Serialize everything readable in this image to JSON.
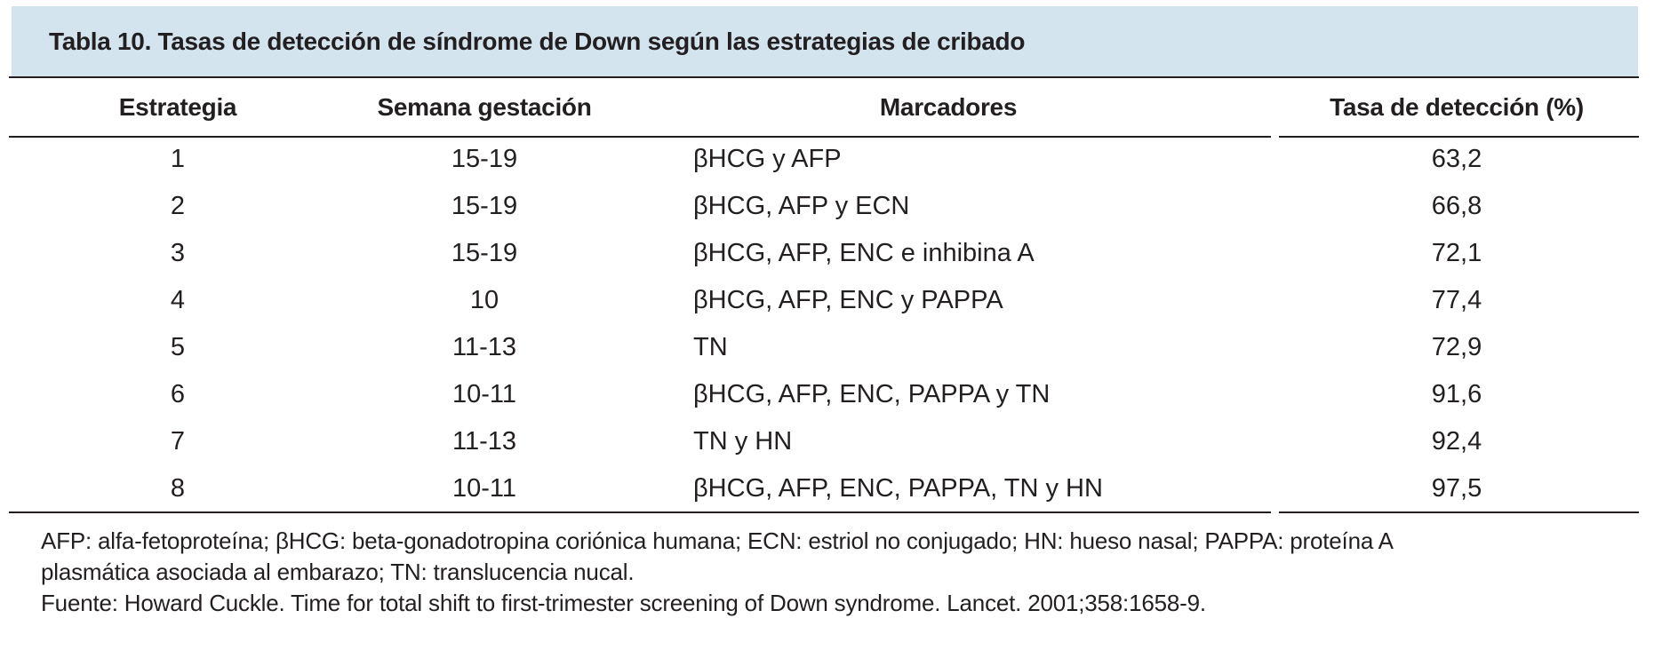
{
  "title": "Tabla 10. Tasas de detección de síndrome de Down según las estrategias de cribado",
  "table": {
    "columns": [
      "Estrategia",
      "Semana gestación",
      "Marcadores",
      "Tasa de detección (%)"
    ],
    "rows": [
      {
        "estrategia": "1",
        "semana": "15-19",
        "marcadores": "βHCG y AFP",
        "tasa": "63,2"
      },
      {
        "estrategia": "2",
        "semana": "15-19",
        "marcadores": "βHCG, AFP y ECN",
        "tasa": "66,8"
      },
      {
        "estrategia": "3",
        "semana": "15-19",
        "marcadores": "βHCG, AFP, ENC e inhibina A",
        "tasa": "72,1"
      },
      {
        "estrategia": "4",
        "semana": "10",
        "marcadores": "βHCG, AFP, ENC y PAPPA",
        "tasa": "77,4"
      },
      {
        "estrategia": "5",
        "semana": "11-13",
        "marcadores": "TN",
        "tasa": "72,9"
      },
      {
        "estrategia": "6",
        "semana": "10-11",
        "marcadores": "βHCG, AFP, ENC, PAPPA y TN",
        "tasa": "91,6"
      },
      {
        "estrategia": "7",
        "semana": "11-13",
        "marcadores": "TN y HN",
        "tasa": "92,4"
      },
      {
        "estrategia": "8",
        "semana": "10-11",
        "marcadores": "βHCG, AFP, ENC, PAPPA, TN y HN",
        "tasa": "97,5"
      }
    ]
  },
  "footnote": {
    "lines": [
      "AFP: alfa-fetoproteína; βHCG: beta-gonadotropina coriónica humana; ECN: estriol no conjugado; HN: hueso nasal; PAPPA: proteína A",
      "plasmática asociada al embarazo; TN: translucencia nucal.",
      "Fuente: Howard Cuckle. Time for total shift to first-trimester screening of Down syndrome. Lancet. 2001;358:1658-9."
    ]
  },
  "colors": {
    "title_band_background": "#d4e4ef",
    "text": "#231f20",
    "rule": "#231f20",
    "page_background": "#ffffff"
  }
}
